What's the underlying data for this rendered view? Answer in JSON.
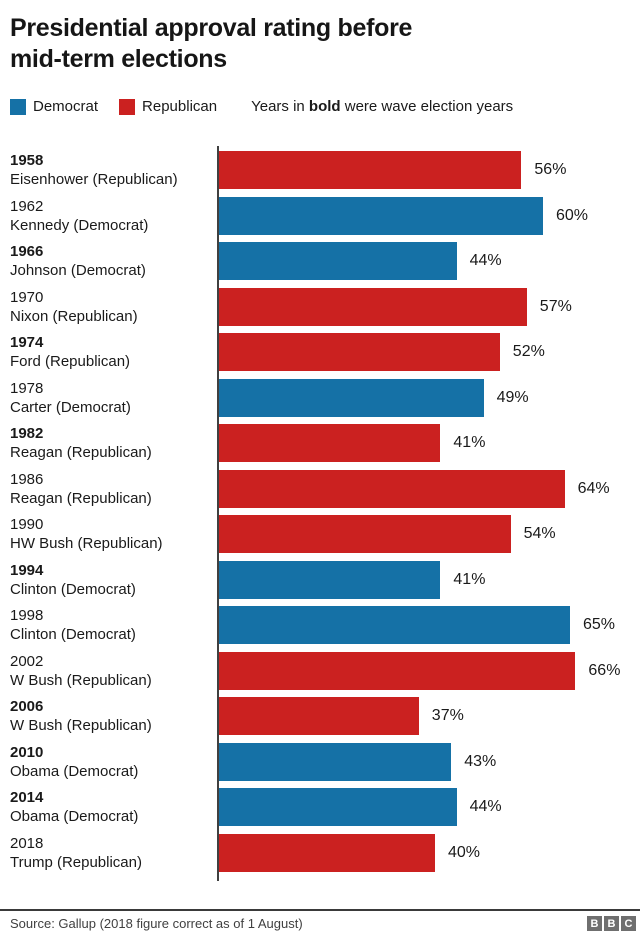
{
  "title_lines": [
    "Presidential approval rating before",
    "mid-term elections"
  ],
  "legend": {
    "items": [
      {
        "label": "Democrat",
        "color": "#1571A6"
      },
      {
        "label": "Republican",
        "color": "#CB2120"
      }
    ],
    "note": {
      "prefix": "Years in ",
      "bold": "bold",
      "suffix": " were wave election years"
    }
  },
  "chart_data": {
    "type": "bar",
    "orientation": "horizontal",
    "title": "Presidential approval rating before mid-term elections",
    "unit": "%",
    "xlim": [
      0,
      70
    ],
    "grid": false,
    "legend_position": "top",
    "colors": {
      "Democrat": "#1571A6",
      "Republican": "#CB2120"
    },
    "rows": [
      {
        "year": "1958",
        "president": "Eisenhower (Republican)",
        "party": "Republican",
        "value": 56,
        "value_label": "56%",
        "wave": true
      },
      {
        "year": "1962",
        "president": "Kennedy (Democrat)",
        "party": "Democrat",
        "value": 60,
        "value_label": "60%",
        "wave": false
      },
      {
        "year": "1966",
        "president": "Johnson (Democrat)",
        "party": "Democrat",
        "value": 44,
        "value_label": "44%",
        "wave": true
      },
      {
        "year": "1970",
        "president": "Nixon (Republican)",
        "party": "Republican",
        "value": 57,
        "value_label": "57%",
        "wave": false
      },
      {
        "year": "1974",
        "president": "Ford (Republican)",
        "party": "Republican",
        "value": 52,
        "value_label": "52%",
        "wave": true
      },
      {
        "year": "1978",
        "president": "Carter (Democrat)",
        "party": "Democrat",
        "value": 49,
        "value_label": "49%",
        "wave": false
      },
      {
        "year": "1982",
        "president": "Reagan (Republican)",
        "party": "Republican",
        "value": 41,
        "value_label": "41%",
        "wave": true
      },
      {
        "year": "1986",
        "president": "Reagan (Republican)",
        "party": "Republican",
        "value": 64,
        "value_label": "64%",
        "wave": false
      },
      {
        "year": "1990",
        "president": "HW Bush (Republican)",
        "party": "Republican",
        "value": 54,
        "value_label": "54%",
        "wave": false
      },
      {
        "year": "1994",
        "president": "Clinton (Democrat)",
        "party": "Democrat",
        "value": 41,
        "value_label": "41%",
        "wave": true
      },
      {
        "year": "1998",
        "president": "Clinton (Democrat)",
        "party": "Democrat",
        "value": 65,
        "value_label": "65%",
        "wave": false
      },
      {
        "year": "2002",
        "president": "W Bush (Republican)",
        "party": "Republican",
        "value": 66,
        "value_label": "66%",
        "wave": false
      },
      {
        "year": "2006",
        "president": "W Bush (Republican)",
        "party": "Republican",
        "value": 37,
        "value_label": "37%",
        "wave": true
      },
      {
        "year": "2010",
        "president": "Obama (Democrat)",
        "party": "Democrat",
        "value": 43,
        "value_label": "43%",
        "wave": true
      },
      {
        "year": "2014",
        "president": "Obama (Democrat)",
        "party": "Democrat",
        "value": 44,
        "value_label": "44%",
        "wave": true
      },
      {
        "year": "2018",
        "president": "Trump (Republican)",
        "party": "Republican",
        "value": 40,
        "value_label": "40%",
        "wave": false
      }
    ]
  },
  "footer": {
    "source": "Source: Gallup (2018 figure correct as of 1 August)",
    "logo_letters": [
      "B",
      "B",
      "C"
    ]
  }
}
